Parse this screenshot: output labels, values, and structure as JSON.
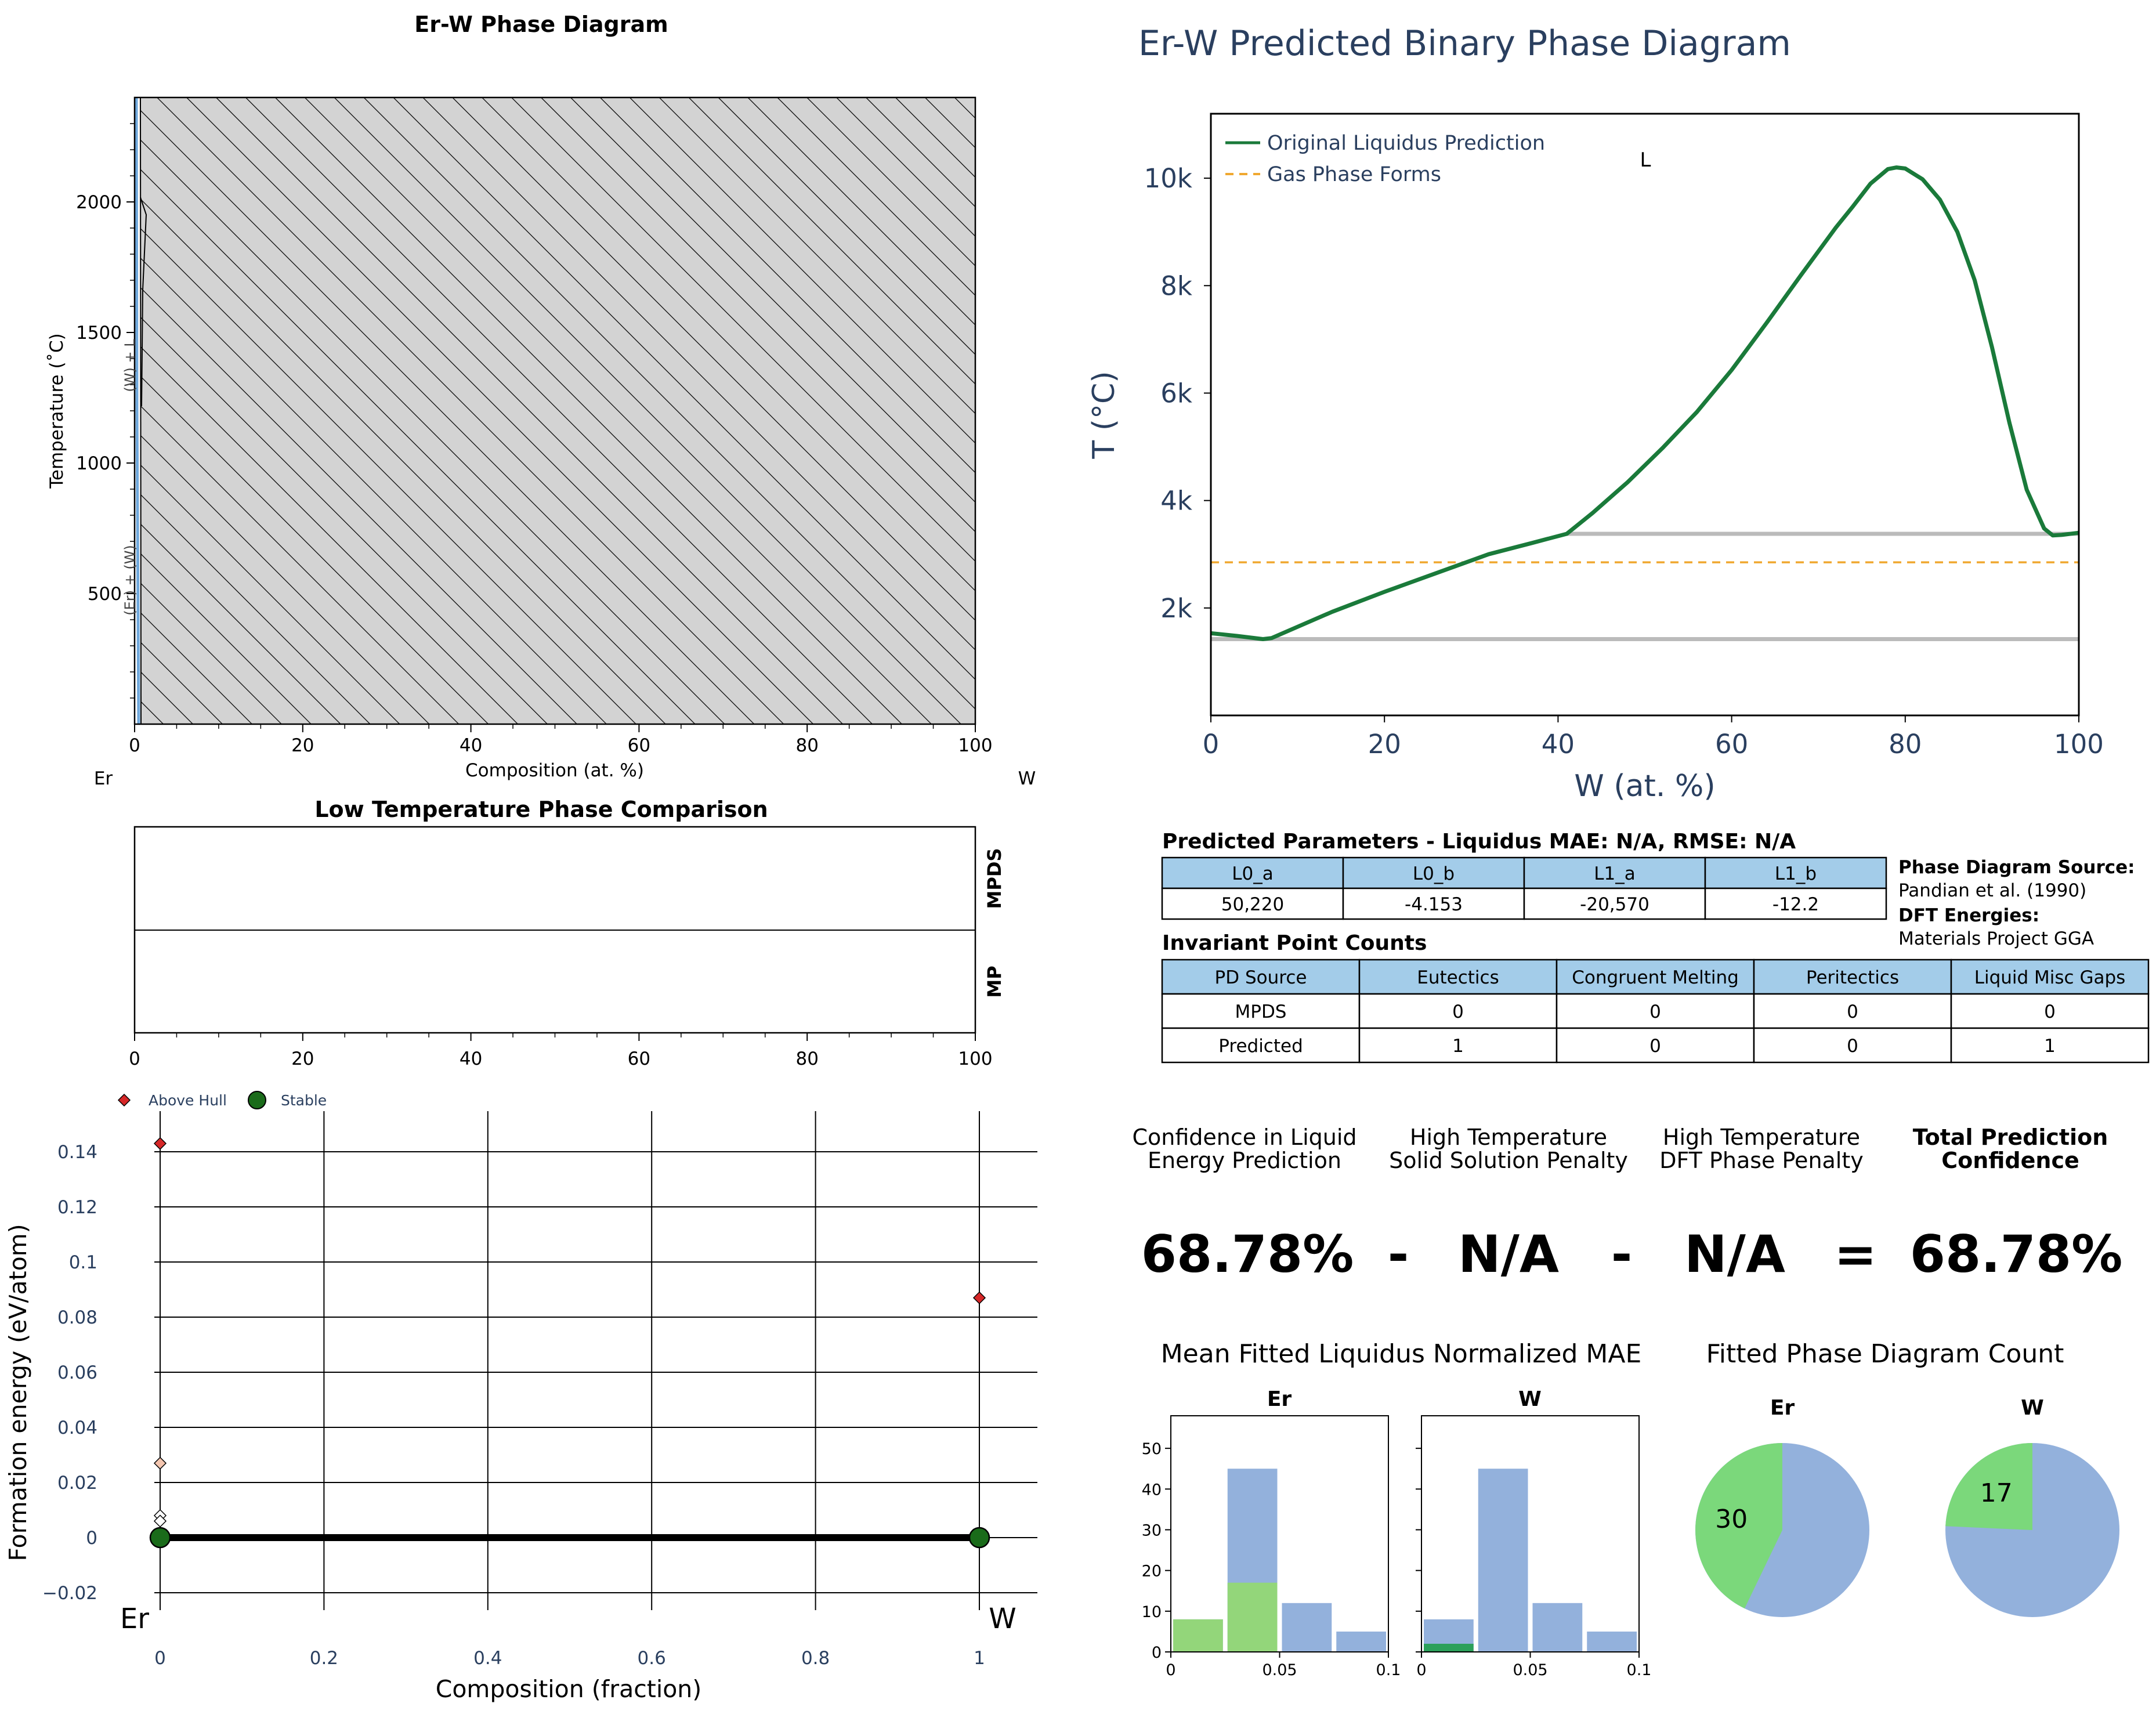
{
  "chart_data": [
    {
      "id": "er_w_phase_diagram",
      "type": "area",
      "title": "Er-W Phase Diagram",
      "xlabel": "Composition (at. %)",
      "ylabel": "Temperature (˚C)",
      "xlim": [
        0,
        100
      ],
      "ylim": [
        0,
        2400
      ],
      "x_ticks": [
        "0",
        "20",
        "40",
        "60",
        "80",
        "100"
      ],
      "y_ticks": [
        "500",
        "1000",
        "1500",
        "2000"
      ],
      "left_element": "Er",
      "right_element": "W",
      "region_labels": [
        "(W) + L",
        "(Er) + (W)"
      ],
      "hatched_region": {
        "x": [
          0.5,
          100
        ],
        "y": [
          0,
          2400
        ],
        "fill": "#d3d3d3"
      }
    },
    {
      "id": "predicted_binary",
      "type": "line",
      "title": "Er-W Predicted Binary Phase Diagram",
      "xlabel": "W (at. %)",
      "ylabel": "T (°C)",
      "xlim": [
        0,
        100
      ],
      "ylim": [
        0,
        11200
      ],
      "x_ticks": [
        "0",
        "20",
        "40",
        "60",
        "80",
        "100"
      ],
      "y_ticks": [
        {
          "v": 2000,
          "label": "2k"
        },
        {
          "v": 4000,
          "label": "4k"
        },
        {
          "v": 6000,
          "label": "6k"
        },
        {
          "v": 8000,
          "label": "8k"
        },
        {
          "v": 10000,
          "label": "10k"
        }
      ],
      "region_label": "L",
      "series": [
        {
          "name": "Original Liquidus Prediction",
          "color": "#1a7a3a",
          "x": [
            0,
            3,
            6,
            7,
            10,
            14,
            20,
            26,
            32,
            37,
            41,
            44,
            48,
            52,
            56,
            60,
            64,
            68,
            72,
            74,
            76,
            78,
            79,
            80,
            82,
            84,
            86,
            88,
            90,
            92,
            94,
            96,
            97,
            98,
            100
          ],
          "y": [
            1530,
            1480,
            1420,
            1440,
            1650,
            1930,
            2300,
            2650,
            3000,
            3210,
            3380,
            3770,
            4340,
            4970,
            5650,
            6430,
            7300,
            8200,
            9080,
            9480,
            9900,
            10170,
            10200,
            10180,
            9980,
            9600,
            9000,
            8100,
            6850,
            5450,
            4200,
            3480,
            3350,
            3360,
            3400
          ]
        },
        {
          "name": "Gas Phase Forms",
          "color": "#f0a830",
          "style": "dashed",
          "x": [
            0,
            100
          ],
          "y": [
            2850,
            2850
          ]
        }
      ],
      "invariant_lines": [
        {
          "x": [
            41,
            100
          ],
          "y": [
            3380,
            3380
          ],
          "color": "#bbbbbb"
        },
        {
          "x": [
            0,
            100
          ],
          "y": [
            1420,
            1420
          ],
          "color": "#bbbbbb"
        }
      ]
    },
    {
      "id": "low_temp_comparison",
      "type": "bar",
      "title": "Low Temperature Phase Comparison",
      "rows": [
        "MPDS",
        "MP"
      ],
      "xlim": [
        0,
        100
      ],
      "x_ticks": [
        "0",
        "20",
        "40",
        "60",
        "80",
        "100"
      ]
    },
    {
      "id": "formation_energy",
      "type": "scatter",
      "xlabel": "Composition (fraction)",
      "ylabel": "Formation energy (eV/atom)",
      "xlim": [
        -0.03,
        1.07
      ],
      "ylim": [
        -0.03,
        0.15
      ],
      "x_ticks": [
        "0",
        "0.2",
        "0.4",
        "0.6",
        "0.8",
        "1"
      ],
      "y_ticks": [
        {
          "v": -0.02,
          "label": "−0.02"
        },
        {
          "v": 0,
          "label": "0"
        },
        {
          "v": 0.02,
          "label": "0.02"
        },
        {
          "v": 0.04,
          "label": "0.04"
        },
        {
          "v": 0.06,
          "label": "0.06"
        },
        {
          "v": 0.08,
          "label": "0.08"
        },
        {
          "v": 0.1,
          "label": "0.1"
        },
        {
          "v": 0.12,
          "label": "0.12"
        },
        {
          "v": 0.14,
          "label": "0.14"
        }
      ],
      "left_element": "Er",
      "right_element": "W",
      "legend": [
        "Above Hull",
        "Stable"
      ],
      "above_hull": [
        {
          "x": 0,
          "y": 0.143,
          "color": "#d62728"
        },
        {
          "x": 1,
          "y": 0.087,
          "color": "#d62728"
        },
        {
          "x": 0,
          "y": 0.027,
          "color": "#f4c6b0"
        },
        {
          "x": 0,
          "y": 0.008,
          "color": "#ffffff"
        },
        {
          "x": 0,
          "y": 0.006,
          "color": "#ffffff"
        }
      ],
      "stable": [
        {
          "x": 0,
          "y": 0
        },
        {
          "x": 1,
          "y": 0
        }
      ],
      "hull": {
        "x": [
          0,
          1
        ],
        "y": [
          0,
          0
        ]
      }
    },
    {
      "id": "mae_histograms",
      "type": "bar",
      "title": "Mean Fitted Liquidus Normalized MAE",
      "panels": [
        {
          "name": "Er",
          "bins": [
            [
              0.0,
              0.025
            ],
            [
              0.025,
              0.05
            ],
            [
              0.05,
              0.075
            ],
            [
              0.075,
              0.1
            ]
          ],
          "total": [
            8,
            45,
            12,
            5
          ],
          "highlight": [
            8,
            17,
            0,
            0
          ],
          "highlight_color": "#93d67a"
        },
        {
          "name": "W",
          "bins": [
            [
              0.0,
              0.025
            ],
            [
              0.025,
              0.05
            ],
            [
              0.05,
              0.075
            ],
            [
              0.075,
              0.1
            ]
          ],
          "total": [
            8,
            45,
            12,
            5
          ],
          "highlight": [
            2,
            0,
            0,
            0
          ],
          "highlight_color": "#2ca05a"
        }
      ],
      "ylim": [
        0,
        58
      ],
      "y_ticks": [
        "0",
        "10",
        "20",
        "30",
        "40",
        "50"
      ],
      "x_ticks": [
        "0",
        "0.05",
        "0.1"
      ]
    },
    {
      "id": "pd_count_pies",
      "type": "pie",
      "title": "Fitted Phase Diagram Count",
      "pies": [
        {
          "name": "Er",
          "highlight": 30,
          "rest": 40,
          "label": "30"
        },
        {
          "name": "W",
          "highlight": 17,
          "rest": 53,
          "label": "17"
        }
      ]
    }
  ],
  "params_table": {
    "title": "Predicted Parameters - Liquidus MAE: N/A, RMSE: N/A",
    "headers": [
      "L0_a",
      "L0_b",
      "L1_a",
      "L1_b"
    ],
    "values": [
      "50,220",
      "-4.153",
      "-20,570",
      "-12.2"
    ]
  },
  "sources": {
    "pd_label": "Phase Diagram Source:",
    "pd_value": "Pandian et al. (1990)",
    "dft_label": "DFT Energies:",
    "dft_value": "Materials Project GGA"
  },
  "invariant_table": {
    "title": "Invariant Point Counts",
    "headers": [
      "PD Source",
      "Eutectics",
      "Congruent Melting",
      "Peritectics",
      "Liquid Misc Gaps"
    ],
    "rows": [
      [
        "MPDS",
        "0",
        "0",
        "0",
        "0"
      ],
      [
        "Predicted",
        "1",
        "0",
        "0",
        "1"
      ]
    ]
  },
  "confidence": {
    "labels": [
      [
        "Confidence in Liquid",
        "Energy Prediction"
      ],
      [
        "High Temperature",
        "Solid Solution Penalty"
      ],
      [
        "High Temperature",
        "DFT Phase Penalty"
      ],
      [
        "Total Prediction",
        "Confidence"
      ]
    ],
    "values": [
      "68.78%",
      "N/A",
      "N/A",
      "68.78%"
    ],
    "operators": [
      "-",
      "-",
      "="
    ]
  },
  "colors": {
    "header_blue": "#a3cce9",
    "bar_blue": "#93b1dc",
    "pie_green": "#7bd87b",
    "pie_blue": "#93b1dc",
    "navy": "#2a3f5f"
  }
}
